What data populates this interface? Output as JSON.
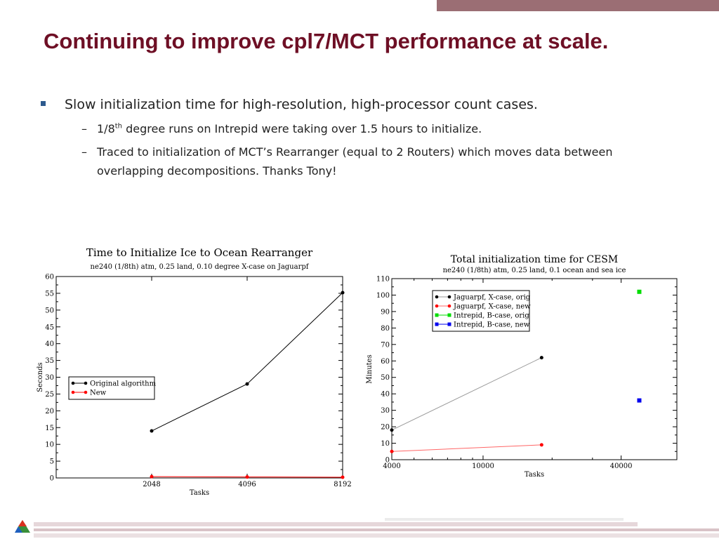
{
  "slide": {
    "title": "Continuing to improve cpl7/MCT performance at scale.",
    "bullet": "Slow initialization time for high-resolution, high-processor count cases.",
    "dash": "–",
    "sub1_pre": "1/8",
    "sub1_sup": "th",
    "sub1_post": " degree runs on Intrepid were taking over 1.5 hours to initialize.",
    "sub2": "Traced to initialization of MCT’s Rearranger (equal to 2 Routers) which moves data between overlapping decompositions.  Thanks Tony!"
  },
  "colors": {
    "title": "#6e0f25",
    "top_bar": "#9b6e74",
    "bullet_marker": "#2d5a8e"
  },
  "chart_data": [
    {
      "type": "line",
      "title": "Time to Initialize Ice to Ocean Rearranger",
      "subtitle": "ne240 (1/8th) atm, 0.25 land, 0.10 degree X-case on Jaguarpf",
      "xlabel": "Tasks",
      "ylabel": "Seconds",
      "x_scale": "log",
      "xlim": [
        1024,
        8192
      ],
      "ylim": [
        0,
        60
      ],
      "x_ticks": [
        2048,
        4096,
        8192
      ],
      "y_ticks": [
        0,
        5,
        10,
        15,
        20,
        25,
        30,
        35,
        40,
        45,
        50,
        55,
        60
      ],
      "legend_position": "middle-left",
      "series": [
        {
          "name": "Original algorithm",
          "color": "#000000",
          "line": "#000000",
          "points": [
            [
              2048,
              14
            ],
            [
              4096,
              28
            ],
            [
              8192,
              55.2
            ]
          ]
        },
        {
          "name": "New",
          "color": "#ff0000",
          "line": "#ff0000",
          "points": [
            [
              2048,
              0.4
            ],
            [
              4096,
              0.3
            ],
            [
              8192,
              0.2
            ]
          ]
        }
      ]
    },
    {
      "type": "line",
      "title": "Total initialization time for CESM",
      "subtitle": "ne240 (1/8th) atm, 0.25 land, 0.1 ocean and sea ice",
      "xlabel": "Tasks",
      "ylabel": "Minutes",
      "x_scale": "log",
      "xlim": [
        4000,
        70000
      ],
      "ylim": [
        0,
        110
      ],
      "x_ticks": [
        4000,
        10000,
        40000
      ],
      "y_ticks": [
        0,
        10,
        20,
        30,
        40,
        50,
        60,
        70,
        80,
        90,
        100,
        110
      ],
      "legend_position": "top-left",
      "series": [
        {
          "name": "Jaguarpf, X-case, orig",
          "color": "#000000",
          "line": "#999999",
          "points": [
            [
              4000,
              18
            ],
            [
              18000,
              62
            ]
          ]
        },
        {
          "name": "Jaguarpf, X-case, new",
          "color": "#ff0000",
          "line": "#ff6666",
          "points": [
            [
              4000,
              5
            ],
            [
              18000,
              9
            ]
          ]
        },
        {
          "name": "Intrepid, B-case, orig",
          "color": "#00dd00",
          "line": "#00dd00",
          "marker": "square",
          "points": [
            [
              48000,
              102
            ]
          ]
        },
        {
          "name": "Intrepid, B-case, new",
          "color": "#0000ee",
          "line": "#0000ee",
          "marker": "square",
          "points": [
            [
              48000,
              36
            ]
          ]
        }
      ]
    }
  ]
}
